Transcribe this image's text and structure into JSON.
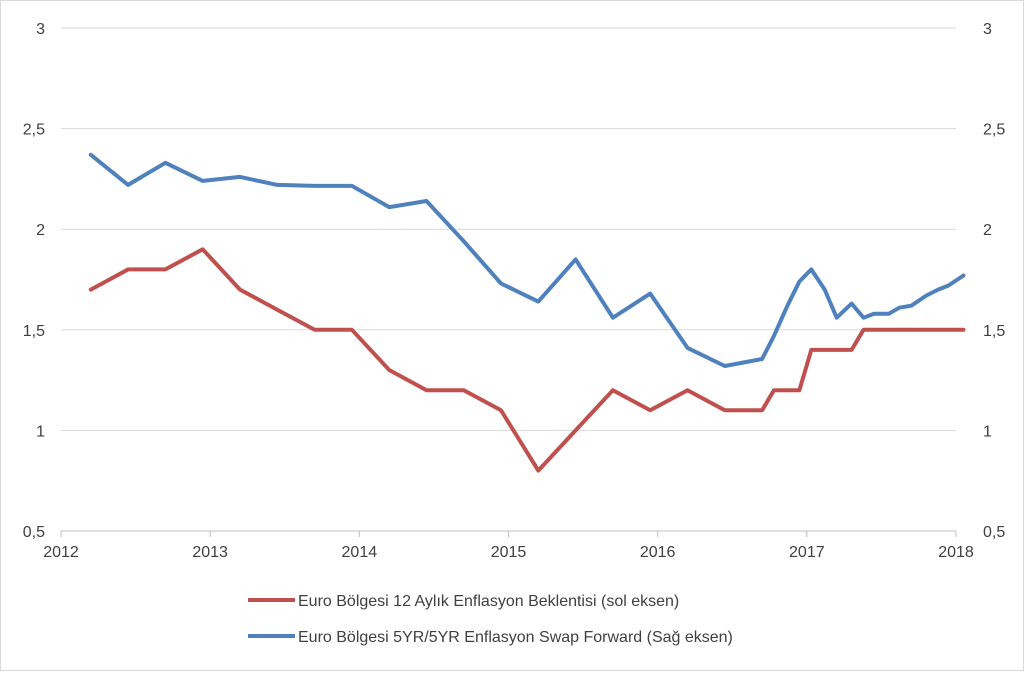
{
  "chart_data": {
    "type": "line",
    "title": "",
    "x_ticks": [
      "2012",
      "2013",
      "2014",
      "2015",
      "2016",
      "2017",
      "2018"
    ],
    "y_left": {
      "ticks": [
        "0,5",
        "1",
        "1,5",
        "2",
        "2,5",
        "3"
      ],
      "ylim": [
        0.5,
        3
      ]
    },
    "y_right": {
      "ticks": [
        "0,5",
        "1",
        "1,5",
        "2",
        "2,5",
        "3"
      ],
      "ylim": [
        0.5,
        3
      ]
    },
    "xlim": [
      2012,
      2018
    ],
    "grid": "horizontal",
    "legend_position": "bottom",
    "series": [
      {
        "name": "Euro Bölgesi 12 Aylık Enflasyon Beklentisi (sol eksen)",
        "color": "#c0504d",
        "axis": "left",
        "points": [
          [
            2012.2,
            1.7
          ],
          [
            2012.45,
            1.8
          ],
          [
            2012.7,
            1.8
          ],
          [
            2012.95,
            1.9
          ],
          [
            2013.2,
            1.7
          ],
          [
            2013.45,
            1.6
          ],
          [
            2013.7,
            1.5
          ],
          [
            2013.95,
            1.5
          ],
          [
            2014.2,
            1.3
          ],
          [
            2014.45,
            1.2
          ],
          [
            2014.7,
            1.2
          ],
          [
            2014.95,
            1.1
          ],
          [
            2015.2,
            0.8
          ],
          [
            2015.45,
            1.0
          ],
          [
            2015.7,
            1.2
          ],
          [
            2015.95,
            1.1
          ],
          [
            2016.2,
            1.2
          ],
          [
            2016.45,
            1.1
          ],
          [
            2016.7,
            1.1
          ],
          [
            2016.78,
            1.2
          ],
          [
            2016.95,
            1.2
          ],
          [
            2017.03,
            1.4
          ],
          [
            2017.3,
            1.4
          ],
          [
            2017.38,
            1.5
          ],
          [
            2018.05,
            1.5
          ]
        ]
      },
      {
        "name": "Euro Bölgesi 5YR/5YR Enflasyon Swap Forward (Sağ eksen)",
        "color": "#4f81bd",
        "axis": "right",
        "points": [
          [
            2012.2,
            2.37
          ],
          [
            2012.45,
            2.22
          ],
          [
            2012.7,
            2.33
          ],
          [
            2012.95,
            2.24
          ],
          [
            2013.2,
            2.26
          ],
          [
            2013.45,
            2.22
          ],
          [
            2013.7,
            2.215
          ],
          [
            2013.95,
            2.215
          ],
          [
            2014.2,
            2.11
          ],
          [
            2014.45,
            2.14
          ],
          [
            2014.7,
            1.94
          ],
          [
            2014.95,
            1.73
          ],
          [
            2015.2,
            1.64
          ],
          [
            2015.45,
            1.85
          ],
          [
            2015.7,
            1.56
          ],
          [
            2015.95,
            1.68
          ],
          [
            2016.2,
            1.41
          ],
          [
            2016.45,
            1.32
          ],
          [
            2016.7,
            1.355
          ],
          [
            2016.78,
            1.47
          ],
          [
            2016.87,
            1.62
          ],
          [
            2016.95,
            1.74
          ],
          [
            2017.03,
            1.8
          ],
          [
            2017.12,
            1.7
          ],
          [
            2017.2,
            1.56
          ],
          [
            2017.3,
            1.63
          ],
          [
            2017.38,
            1.56
          ],
          [
            2017.45,
            1.58
          ],
          [
            2017.55,
            1.58
          ],
          [
            2017.62,
            1.61
          ],
          [
            2017.7,
            1.62
          ],
          [
            2017.8,
            1.67
          ],
          [
            2017.88,
            1.7
          ],
          [
            2017.95,
            1.72
          ],
          [
            2018.05,
            1.77
          ]
        ]
      }
    ]
  }
}
